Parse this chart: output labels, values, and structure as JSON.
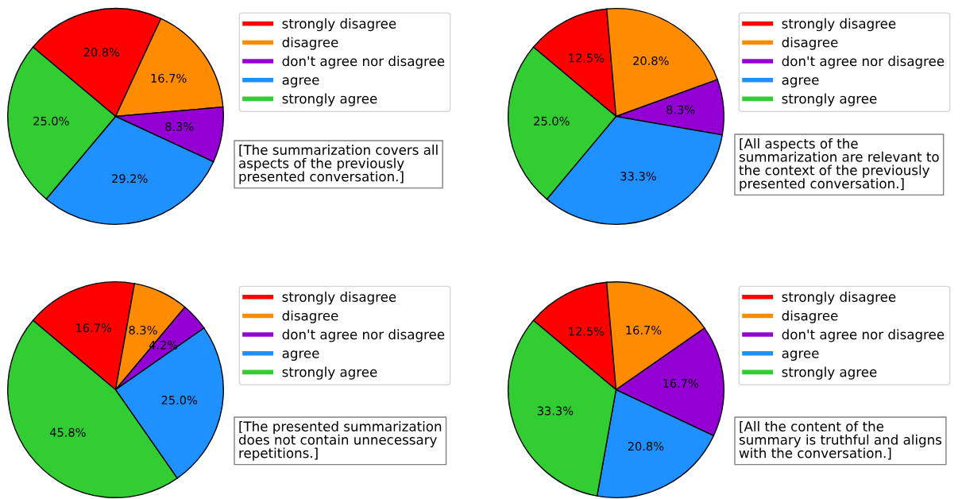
{
  "chart_data": [
    {
      "type": "pie",
      "categories": [
        "strongly disagree",
        "disagree",
        "don't agree nor disagree",
        "agree",
        "strongly agree"
      ],
      "values": [
        20.8,
        16.7,
        8.3,
        29.2,
        25.0
      ],
      "value_labels": [
        "20.8%",
        "16.7%",
        "8.3%",
        "29.2%",
        "25.0%"
      ],
      "colors": [
        "#ff0000",
        "#ff8c00",
        "#9400d3",
        "#1e90ff",
        "#32cd32"
      ],
      "legend": "right",
      "annotations": [
        "[The summarization covers all\naspects of the previously\npresented conversation.]"
      ]
    },
    {
      "type": "pie",
      "categories": [
        "strongly disagree",
        "disagree",
        "don't agree nor disagree",
        "agree",
        "strongly agree"
      ],
      "values": [
        12.5,
        20.8,
        8.3,
        33.3,
        25.0
      ],
      "value_labels": [
        "12.5%",
        "20.8%",
        "8.3%",
        "33.3%",
        "25.0%"
      ],
      "colors": [
        "#ff0000",
        "#ff8c00",
        "#9400d3",
        "#1e90ff",
        "#32cd32"
      ],
      "legend": "right",
      "annotations": [
        "[All aspects of the\nsummarization are relevant to\nthe context of the previously\npresented conversation.]"
      ]
    },
    {
      "type": "pie",
      "categories": [
        "strongly disagree",
        "disagree",
        "don't agree nor disagree",
        "agree",
        "strongly agree"
      ],
      "values": [
        16.7,
        8.3,
        4.2,
        25.0,
        45.8
      ],
      "value_labels": [
        "16.7%",
        "8.3%",
        "4.2%",
        "25.0%",
        "45.8%"
      ],
      "colors": [
        "#ff0000",
        "#ff8c00",
        "#9400d3",
        "#1e90ff",
        "#32cd32"
      ],
      "legend": "right",
      "annotations": [
        "[The presented summarization\ndoes not contain unnecessary\nrepetitions.]"
      ]
    },
    {
      "type": "pie",
      "categories": [
        "strongly disagree",
        "disagree",
        "don't agree nor disagree",
        "agree",
        "strongly agree"
      ],
      "values": [
        12.5,
        16.7,
        16.7,
        20.8,
        33.3
      ],
      "value_labels": [
        "12.5%",
        "16.7%",
        "16.7%",
        "20.8%",
        "33.3%"
      ],
      "colors": [
        "#ff0000",
        "#ff8c00",
        "#9400d3",
        "#1e90ff",
        "#32cd32"
      ],
      "legend": "right",
      "annotations": [
        "[All the content of the\nsummary is truthful and aligns\nwith the conversation.]"
      ]
    }
  ]
}
